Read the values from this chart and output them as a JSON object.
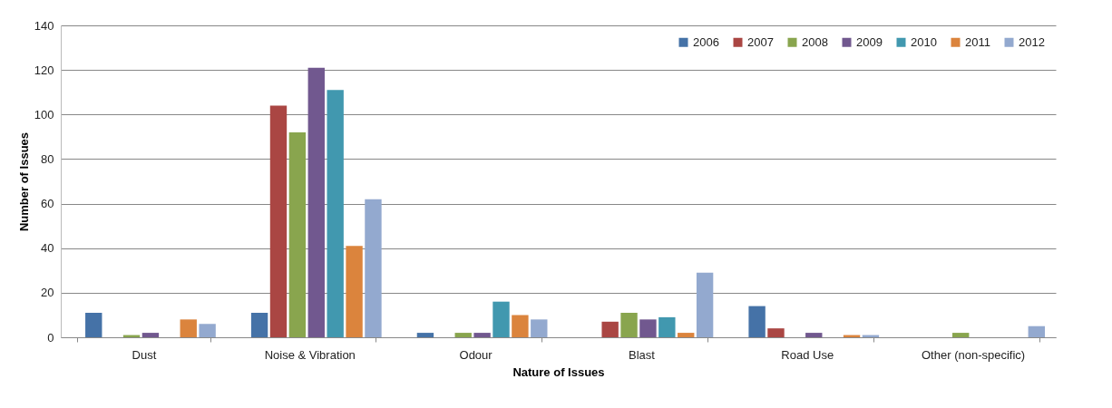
{
  "chart_data": {
    "type": "bar",
    "xlabel": "Nature of Issues",
    "ylabel": "Number of Issues",
    "categories": [
      "Dust",
      "Noise & Vibration",
      "Odour",
      "Blast",
      "Road Use",
      "Other (non-specific)"
    ],
    "series": [
      {
        "name": "2006",
        "color": "#4572a7",
        "values": [
          11,
          11,
          2,
          0,
          14,
          0
        ]
      },
      {
        "name": "2007",
        "color": "#aa4643",
        "values": [
          0,
          104,
          0,
          7,
          4,
          0
        ]
      },
      {
        "name": "2008",
        "color": "#89a54e",
        "values": [
          1,
          92,
          2,
          11,
          0,
          2
        ]
      },
      {
        "name": "2009",
        "color": "#71588f",
        "values": [
          2,
          121,
          2,
          8,
          2,
          0
        ]
      },
      {
        "name": "2010",
        "color": "#4198af",
        "values": [
          0,
          111,
          16,
          9,
          0,
          0
        ]
      },
      {
        "name": "2011",
        "color": "#db843d",
        "values": [
          8,
          41,
          10,
          2,
          1,
          0
        ]
      },
      {
        "name": "2012",
        "color": "#93a9cf",
        "values": [
          6,
          62,
          8,
          29,
          1,
          5
        ]
      }
    ],
    "ylim": [
      0,
      140
    ],
    "yticks": [
      0,
      20,
      40,
      60,
      80,
      100,
      120,
      140
    ],
    "grid": "y",
    "legend": "top right"
  }
}
